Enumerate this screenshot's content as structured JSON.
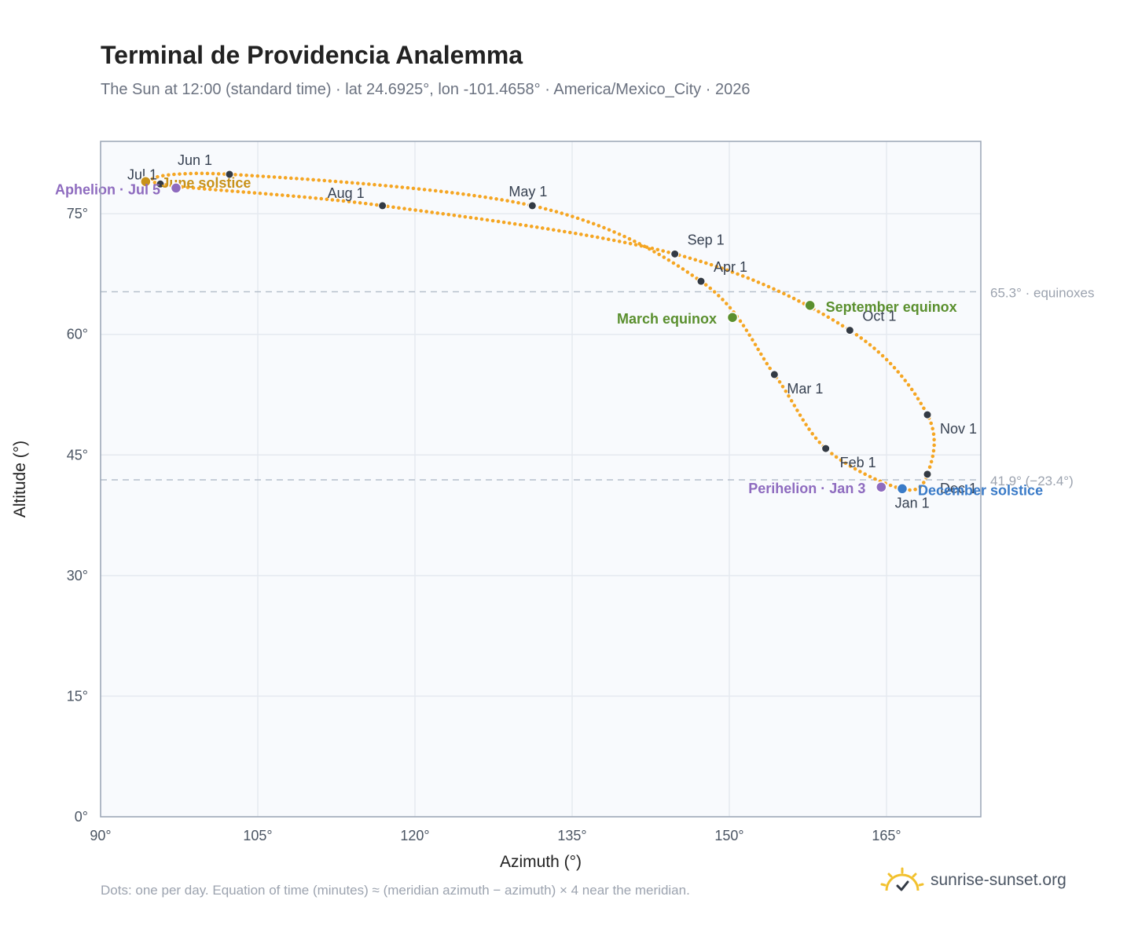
{
  "title": "Terminal de Providencia Analemma",
  "subtitle": "The Sun at 12:00 (standard time) · lat 24.6925°, lon -101.4658° · America/Mexico_City · 2026",
  "footnote": "Dots: one per day. Equation of time (minutes) ≈ (meridian azimuth − azimuth) × 4 near the meridian.",
  "brand": {
    "name": "sunrise-sunset.org",
    "icon": "sun-check-icon"
  },
  "colors": {
    "curve": "#f5a623",
    "month_dot": "#333a44",
    "equinox": "#5a8f2e",
    "june_solstice": "#c8921a",
    "december_solstice": "#3a7bc8",
    "apsis": "#8e6bbf",
    "plot_bg": "#f8fafd",
    "grid": "#e5e9f0",
    "ref_line": "#b6bfcc"
  },
  "chart_data": {
    "type": "scatter",
    "xlabel": "Azimuth (°)",
    "ylabel": "Altitude (°)",
    "xlim": [
      90,
      174
    ],
    "ylim": [
      0,
      84
    ],
    "xticks": [
      90,
      105,
      120,
      135,
      150,
      165
    ],
    "yticks": [
      0,
      15,
      30,
      45,
      60,
      75
    ],
    "tick_suffix": "°",
    "grid": true,
    "month_points": [
      {
        "label": "Jan 1",
        "az": 166.4,
        "alt": 40.8
      },
      {
        "label": "Feb 1",
        "az": 159.2,
        "alt": 45.8
      },
      {
        "label": "Mar 1",
        "az": 154.3,
        "alt": 55.0
      },
      {
        "label": "Apr 1",
        "az": 147.3,
        "alt": 66.6
      },
      {
        "label": "May 1",
        "az": 131.2,
        "alt": 76.0
      },
      {
        "label": "Jun 1",
        "az": 102.3,
        "alt": 79.9
      },
      {
        "label": "Jul 1",
        "az": 95.7,
        "alt": 78.7
      },
      {
        "label": "Aug 1",
        "az": 116.9,
        "alt": 76.0
      },
      {
        "label": "Sep 1",
        "az": 144.8,
        "alt": 70.0
      },
      {
        "label": "Oct 1",
        "az": 161.5,
        "alt": 60.5
      },
      {
        "label": "Nov 1",
        "az": 168.9,
        "alt": 50.0
      },
      {
        "label": "Dec 1",
        "az": 168.9,
        "alt": 42.6
      }
    ],
    "events": [
      {
        "label": "March equinox",
        "az": 150.3,
        "alt": 62.1,
        "kind": "equinox"
      },
      {
        "label": "September equinox",
        "az": 157.7,
        "alt": 63.6,
        "kind": "equinox"
      },
      {
        "label": "June solstice",
        "az": 94.3,
        "alt": 79.0,
        "kind": "june_solstice"
      },
      {
        "label": "December solstice",
        "az": 166.5,
        "alt": 40.8,
        "kind": "december_solstice"
      },
      {
        "label": "Perihelion · Jan 3",
        "az": 164.5,
        "alt": 41.0,
        "kind": "apsis"
      },
      {
        "label": "Aphelion · Jul 5",
        "az": 97.2,
        "alt": 78.2,
        "kind": "apsis"
      }
    ],
    "reference_lines": [
      {
        "label": "65.3° · equinoxes",
        "alt": 65.3
      },
      {
        "label": "41.9° (−23.4°)",
        "alt": 41.9
      }
    ]
  }
}
